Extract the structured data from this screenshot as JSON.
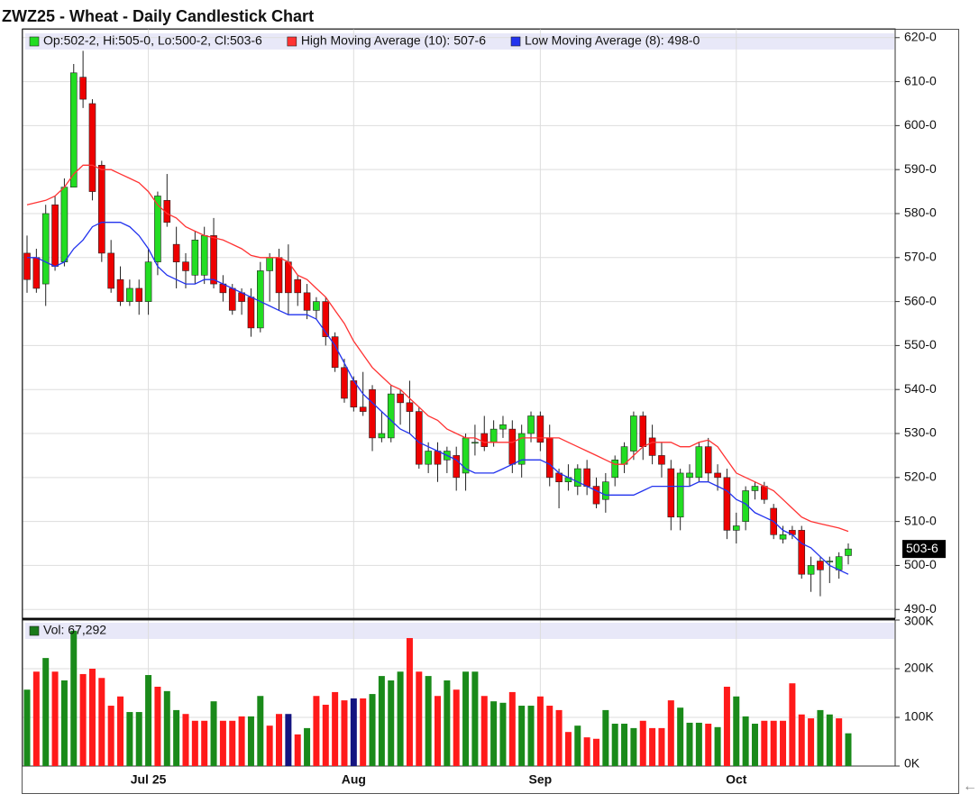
{
  "chart_data": [
    {
      "type": "candlestick",
      "title": "ZWZ25 - Wheat - Daily Candlestick Chart",
      "categories": [
        null,
        null,
        null,
        null,
        null,
        null,
        null,
        null,
        null,
        null,
        null,
        null,
        null,
        "Jul 25",
        null,
        null,
        null,
        null,
        null,
        null,
        null,
        null,
        null,
        null,
        null,
        null,
        null,
        null,
        null,
        null,
        null,
        null,
        null,
        null,
        null,
        "Aug",
        null,
        null,
        null,
        null,
        null,
        null,
        null,
        null,
        null,
        null,
        null,
        null,
        null,
        null,
        null,
        null,
        null,
        null,
        null,
        "Sep",
        null,
        null,
        null,
        null,
        null,
        null,
        null,
        null,
        null,
        null,
        null,
        null,
        null,
        null,
        null,
        null,
        null,
        null,
        null,
        null,
        "Oct",
        null,
        null,
        null,
        null,
        null,
        null,
        null,
        null,
        null,
        null,
        null,
        null
      ],
      "open": [
        571,
        570,
        564,
        582,
        569,
        586,
        611,
        605,
        591,
        571,
        565,
        560,
        563,
        560,
        569,
        583,
        573,
        569,
        566,
        566,
        575,
        564,
        563,
        562,
        561,
        554,
        567,
        570,
        569,
        565,
        562,
        558,
        560,
        552,
        545,
        542,
        536,
        540,
        529,
        529,
        539,
        537,
        535,
        523,
        526,
        524,
        525,
        521,
        528,
        530,
        528,
        531,
        531,
        523,
        530,
        534,
        529,
        521,
        519,
        518,
        522,
        518,
        515,
        520,
        523,
        526,
        534,
        529,
        525,
        522,
        511,
        520,
        520,
        527,
        521,
        520,
        508,
        510,
        517,
        518,
        513,
        506,
        508,
        508,
        498,
        501,
        501,
        499,
        502.25
      ],
      "high": [
        575,
        572,
        582,
        584,
        588,
        614,
        617,
        606,
        592,
        574,
        568,
        565,
        565,
        572,
        585,
        589,
        577,
        571,
        576,
        577,
        579,
        566,
        564,
        563,
        563,
        569,
        571,
        572,
        573,
        566,
        564,
        561,
        561,
        553,
        547,
        543,
        544,
        541,
        535,
        541,
        540,
        542,
        536,
        528,
        528,
        527,
        527,
        530,
        532,
        534,
        533,
        534,
        533,
        532,
        535,
        535,
        532,
        522,
        523,
        523,
        524,
        520,
        521,
        525,
        528,
        535,
        535,
        532,
        528,
        524,
        522,
        523,
        528,
        529,
        523,
        522,
        512,
        518,
        519,
        519,
        514,
        509,
        509,
        509,
        502,
        502,
        502,
        503,
        505
      ],
      "low": [
        562,
        562,
        559,
        567,
        568,
        586,
        604,
        583,
        569,
        562,
        559,
        559,
        557,
        557,
        566,
        577,
        563,
        563,
        564,
        564,
        563,
        560,
        557,
        557,
        552,
        553,
        560,
        558,
        557,
        559,
        556,
        556,
        550,
        544,
        537,
        535,
        534,
        526,
        528,
        528,
        532,
        530,
        522,
        521,
        519,
        521,
        517,
        517,
        525,
        526,
        527,
        529,
        521,
        520,
        528,
        526,
        518,
        513,
        517,
        516,
        516,
        513,
        512,
        518,
        521,
        524,
        524,
        523,
        520,
        508,
        508,
        518,
        519,
        519,
        517,
        506,
        505,
        508,
        515,
        514,
        506,
        505,
        506,
        497,
        494,
        493,
        496,
        497,
        500.25
      ],
      "close": [
        565,
        563,
        580,
        568,
        586,
        612,
        606,
        585,
        571,
        563,
        560,
        563,
        560,
        569,
        584,
        578,
        569,
        567,
        574,
        575,
        564,
        562,
        558,
        560,
        554,
        567,
        570,
        562,
        562,
        562,
        558,
        560,
        552,
        545,
        538,
        536,
        535,
        529,
        530,
        539,
        537,
        535,
        523,
        526,
        523,
        526,
        520,
        529,
        528,
        527,
        531,
        532,
        523,
        530,
        534,
        528,
        520,
        519,
        520,
        522,
        518,
        514,
        519,
        524,
        527,
        534,
        527,
        525,
        523,
        511,
        521,
        521,
        527,
        521,
        520,
        508,
        509,
        517,
        518,
        515,
        507,
        507,
        507,
        498,
        500,
        499,
        501,
        502,
        503.75
      ],
      "up_color": "#22dd22",
      "down_color": "#ee0000",
      "ohlc_label": "Op:502-2, Hi:505-0, Lo:500-2, Cl:503-6",
      "ohlc_color": "#22dd22",
      "last_label": "503-6",
      "series": [
        {
          "name": "High Moving Average (10): 507-6",
          "color": "#ff3333",
          "values": [
            582,
            582.5,
            583,
            584,
            586,
            589,
            591,
            591,
            590,
            590,
            589,
            588,
            587,
            585,
            582,
            580,
            579,
            577,
            576,
            575,
            574.5,
            574,
            573,
            572,
            570.5,
            570,
            570,
            570,
            569,
            566,
            565,
            563,
            561,
            558,
            555,
            551,
            548,
            545,
            543,
            541,
            540,
            538,
            536,
            534,
            533,
            531,
            530,
            529,
            529,
            528,
            528,
            528,
            528,
            529,
            529,
            529,
            529,
            529,
            528,
            527,
            526,
            525,
            524,
            523,
            523,
            525,
            527,
            528,
            528,
            528,
            527,
            527,
            528,
            528.5,
            527,
            524,
            521,
            520,
            519,
            518,
            517,
            515,
            513,
            511,
            510,
            509.5,
            509,
            508.5,
            507.75
          ]
        },
        {
          "name": "Low Moving Average (8): 498-0",
          "color": "#2233ee",
          "values": [
            570,
            570,
            569,
            568,
            569,
            572,
            574,
            577,
            578,
            578,
            578,
            577,
            575,
            572,
            568,
            566,
            565,
            564,
            564,
            565,
            565,
            564,
            563,
            562,
            561,
            560,
            559,
            558,
            557,
            557,
            557,
            556,
            553,
            550,
            546,
            542,
            539,
            537,
            535,
            533,
            531,
            530,
            528,
            527,
            526,
            525,
            524,
            522,
            521,
            521,
            521,
            522,
            523,
            524,
            524,
            524,
            523,
            521,
            520,
            519,
            518,
            517,
            516,
            516,
            516,
            516,
            517,
            518,
            518,
            518,
            518,
            518,
            519,
            519,
            518,
            517,
            515,
            514,
            512,
            511,
            510,
            508,
            507,
            505,
            504,
            502,
            500,
            499,
            498
          ]
        }
      ],
      "ylim": [
        488,
        622
      ],
      "yticks": [
        {
          "value": 490,
          "label": "490-0"
        },
        {
          "value": 500,
          "label": "500-0"
        },
        {
          "value": 510,
          "label": "510-0"
        },
        {
          "value": 520,
          "label": "520-0"
        },
        {
          "value": 530,
          "label": "530-0"
        },
        {
          "value": 540,
          "label": "540-0"
        },
        {
          "value": 550,
          "label": "550-0"
        },
        {
          "value": 560,
          "label": "560-0"
        },
        {
          "value": 570,
          "label": "570-0"
        },
        {
          "value": 580,
          "label": "580-0"
        },
        {
          "value": 590,
          "label": "590-0"
        },
        {
          "value": 600,
          "label": "600-0"
        },
        {
          "value": 610,
          "label": "610-0"
        },
        {
          "value": 620,
          "label": "620-0"
        }
      ],
      "grid": true,
      "nav_arrow": "←"
    },
    {
      "type": "bar",
      "legend": "Vol: 67,292",
      "legend_color": "#1a7a1a",
      "values": [
        157000,
        194000,
        222000,
        194000,
        176000,
        278000,
        189000,
        200000,
        181000,
        124000,
        143000,
        111000,
        111000,
        187000,
        163000,
        154000,
        115000,
        107000,
        93000,
        93000,
        133000,
        93000,
        93000,
        102000,
        102000,
        144000,
        83000,
        107000,
        107000,
        65000,
        78000,
        144000,
        126000,
        152000,
        135000,
        139000,
        139000,
        148000,
        185000,
        176000,
        194000,
        263000,
        194000,
        185000,
        144000,
        176000,
        157000,
        194000,
        194000,
        144000,
        133000,
        130000,
        152000,
        124000,
        124000,
        143000,
        124000,
        115000,
        70000,
        83000,
        59000,
        56000,
        115000,
        87000,
        87000,
        78000,
        93000,
        78000,
        78000,
        135000,
        120000,
        89000,
        89000,
        87000,
        80000,
        163000,
        143000,
        102000,
        87000,
        93000,
        93000,
        93000,
        170000,
        106000,
        98000,
        115000,
        106000,
        98000,
        67292
      ],
      "colors": [
        "#1a8a1a",
        "#ff1a1a",
        "#1a8a1a",
        "#ff1a1a",
        "#1a8a1a",
        "#1a8a1a",
        "#ff1a1a",
        "#ff1a1a",
        "#ff1a1a",
        "#ff1a1a",
        "#ff1a1a",
        "#1a8a1a",
        "#1a8a1a",
        "#1a8a1a",
        "#ff1a1a",
        "#1a8a1a",
        "#1a8a1a",
        "#ff1a1a",
        "#ff1a1a",
        "#ff1a1a",
        "#1a8a1a",
        "#ff1a1a",
        "#ff1a1a",
        "#ff1a1a",
        "#1a8a1a",
        "#1a8a1a",
        "#ff1a1a",
        "#ff1a1a",
        "#141480",
        "#ff1a1a",
        "#1a8a1a",
        "#ff1a1a",
        "#ff1a1a",
        "#ff1a1a",
        "#ff1a1a",
        "#141480",
        "#ff1a1a",
        "#1a8a1a",
        "#1a8a1a",
        "#1a8a1a",
        "#1a8a1a",
        "#ff1a1a",
        "#ff1a1a",
        "#1a8a1a",
        "#ff1a1a",
        "#1a8a1a",
        "#ff1a1a",
        "#1a8a1a",
        "#1a8a1a",
        "#ff1a1a",
        "#1a8a1a",
        "#1a8a1a",
        "#ff1a1a",
        "#1a8a1a",
        "#1a8a1a",
        "#ff1a1a",
        "#ff1a1a",
        "#ff1a1a",
        "#ff1a1a",
        "#1a8a1a",
        "#ff1a1a",
        "#ff1a1a",
        "#1a8a1a",
        "#1a8a1a",
        "#1a8a1a",
        "#1a8a1a",
        "#ff1a1a",
        "#ff1a1a",
        "#ff1a1a",
        "#ff1a1a",
        "#1a8a1a",
        "#1a8a1a",
        "#1a8a1a",
        "#ff1a1a",
        "#1a8a1a",
        "#ff1a1a",
        "#1a8a1a",
        "#1a8a1a",
        "#1a8a1a",
        "#ff1a1a",
        "#ff1a1a",
        "#ff1a1a",
        "#ff1a1a",
        "#ff1a1a",
        "#ff1a1a",
        "#1a8a1a",
        "#1a8a1a",
        "#ff1a1a",
        "#1a8a1a"
      ],
      "ylim": [
        0,
        300000
      ],
      "yticks": [
        {
          "value": 0,
          "label": "0K"
        },
        {
          "value": 100000,
          "label": "100K"
        },
        {
          "value": 200000,
          "label": "200K"
        },
        {
          "value": 300000,
          "label": "300K"
        }
      ]
    }
  ]
}
